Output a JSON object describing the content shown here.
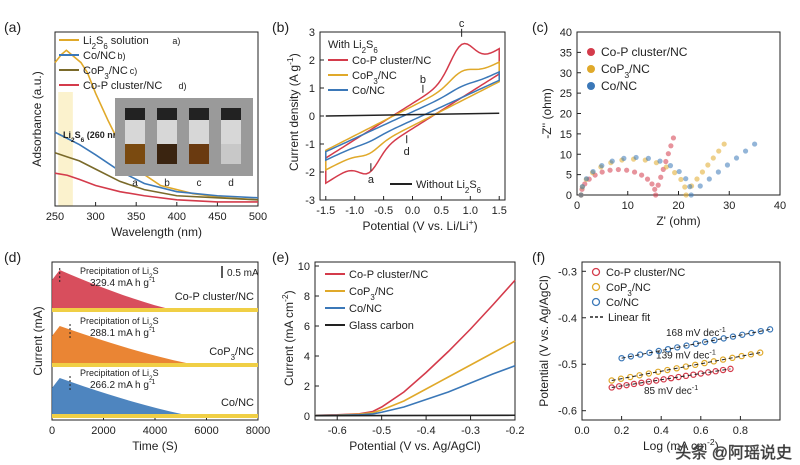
{
  "colors": {
    "red": "#d43b4b",
    "gold": "#e0a92a",
    "blue": "#3b78b8",
    "black": "#222222",
    "yellow": "#f0cf45"
  },
  "watermark": "头条 @阿瑶说史",
  "chart_data": [
    {
      "panel": "(a)",
      "type": "line",
      "xlabel": "Wavelength (nm)",
      "ylabel": "Adsorbance (a.u.)",
      "xlim": [
        250,
        500
      ],
      "xticks": [
        250,
        300,
        350,
        400,
        450,
        500
      ],
      "annotation": "Li2S6 (260 nm)",
      "vial_labels": [
        "a",
        "b",
        "c",
        "d"
      ],
      "series": [
        {
          "name": "Li2S6 solution",
          "tag": "a)",
          "color": "#e0a92a",
          "x": [
            250,
            258,
            264,
            270,
            276,
            282,
            290,
            300,
            315,
            330,
            350,
            380,
            420,
            460,
            500
          ],
          "y": [
            0.7,
            0.74,
            0.76,
            0.74,
            0.72,
            0.7,
            0.65,
            0.55,
            0.42,
            0.3,
            0.18,
            0.1,
            0.06,
            0.04,
            0.03
          ]
        },
        {
          "name": "Co/NC",
          "tag": "b)",
          "color": "#3b78b8",
          "x": [
            250,
            265,
            280,
            300,
            330,
            360,
            400,
            450,
            500
          ],
          "y": [
            0.36,
            0.33,
            0.3,
            0.25,
            0.17,
            0.11,
            0.07,
            0.05,
            0.04
          ]
        },
        {
          "name": "CoP3/NC",
          "tag": "c)",
          "color": "#7a6a2a",
          "x": [
            250,
            265,
            280,
            300,
            330,
            360,
            400,
            450,
            500
          ],
          "y": [
            0.26,
            0.24,
            0.22,
            0.18,
            0.12,
            0.08,
            0.05,
            0.04,
            0.03
          ]
        },
        {
          "name": "Co-P cluster/NC",
          "tag": "d)",
          "color": "#d43b4b",
          "x": [
            250,
            265,
            280,
            300,
            330,
            360,
            400,
            450,
            500
          ],
          "y": [
            0.16,
            0.15,
            0.13,
            0.1,
            0.07,
            0.05,
            0.03,
            0.02,
            0.02
          ]
        }
      ]
    },
    {
      "panel": "(b)",
      "type": "line",
      "title": "With Li2S6",
      "xlabel": "Potential (V vs. Li/Li+)",
      "ylabel": "Current density (A g-1)",
      "xlim": [
        -1.6,
        1.6
      ],
      "ylim": [
        -3,
        3
      ],
      "xticks": [
        -1.5,
        -1.0,
        -0.5,
        0.0,
        0.5,
        1.0,
        1.5
      ],
      "yticks": [
        -3,
        -2,
        -1,
        0,
        1,
        2,
        3
      ],
      "peak_labels": [
        "a",
        "b",
        "c",
        "d"
      ],
      "legend_extra": "Without Li2S6",
      "series": [
        {
          "name": "Co-P cluster/NC",
          "color": "#d43b4b"
        },
        {
          "name": "CoP3/NC",
          "color": "#e0a92a"
        },
        {
          "name": "Co/NC",
          "color": "#3b78b8"
        },
        {
          "name": "Without Li2S6",
          "color": "#222222"
        }
      ]
    },
    {
      "panel": "(c)",
      "type": "scatter",
      "xlabel": "Z' (ohm)",
      "ylabel": "-Z'' (ohm)",
      "xlim": [
        0,
        40
      ],
      "ylim": [
        0,
        40
      ],
      "xticks": [
        0,
        10,
        20,
        30,
        40
      ],
      "yticks": [
        0,
        5,
        10,
        15,
        20,
        25,
        30,
        35,
        40
      ],
      "series": [
        {
          "name": "Co-P cluster/NC",
          "color": "#d43b4b",
          "rct": 15.5,
          "tail_end": [
            19,
            14
          ]
        },
        {
          "name": "CoP3/NC",
          "color": "#e0a92a",
          "rct": 21.5,
          "tail_end": [
            29,
            12.5
          ]
        },
        {
          "name": "Co/NC",
          "color": "#3b78b8",
          "rct": 22.5,
          "tail_end": [
            35,
            12.5
          ]
        }
      ]
    },
    {
      "panel": "(d)",
      "type": "area",
      "xlabel": "Time (S)",
      "ylabel": "Current (mA)",
      "xlim": [
        0,
        8000
      ],
      "xticks": [
        0,
        2000,
        4000,
        6000,
        8000
      ],
      "scale_bar": "0.5 mA",
      "traces": [
        {
          "name": "Co-P cluster/NC",
          "color": "#d43b4b",
          "precipitation_label": "Precipitation of Li2S",
          "capacity": "329.4 mA h g-1"
        },
        {
          "name": "CoP3/NC",
          "color": "#e8781e",
          "precipitation_label": "Precipitation of Li2S",
          "capacity": "288.1 mA h g-1"
        },
        {
          "name": "Co/NC",
          "color": "#3b78b8",
          "precipitation_label": "Precipitation of Li2S",
          "capacity": "266.2 mA h g-1"
        }
      ]
    },
    {
      "panel": "(e)",
      "type": "line",
      "xlabel": "Potential (V vs. Ag/AgCl)",
      "ylabel": "Current (mA cm-2)",
      "xlim": [
        -0.65,
        -0.2
      ],
      "ylim": [
        0,
        10
      ],
      "xticks": [
        -0.6,
        -0.5,
        -0.4,
        -0.3,
        -0.2
      ],
      "yticks": [
        0,
        2,
        4,
        6,
        8,
        10
      ],
      "series": [
        {
          "name": "Co-P cluster/NC",
          "color": "#d43b4b",
          "x": [
            -0.65,
            -0.6,
            -0.55,
            -0.52,
            -0.5,
            -0.45,
            -0.4,
            -0.35,
            -0.3,
            -0.25,
            -0.2
          ],
          "y": [
            0.05,
            0.08,
            0.15,
            0.3,
            0.6,
            1.6,
            2.9,
            4.3,
            5.8,
            7.4,
            9.05
          ]
        },
        {
          "name": "CoP3/NC",
          "color": "#e0a92a",
          "x": [
            -0.65,
            -0.6,
            -0.55,
            -0.52,
            -0.5,
            -0.45,
            -0.4,
            -0.35,
            -0.3,
            -0.25,
            -0.2
          ],
          "y": [
            0.04,
            0.06,
            0.12,
            0.22,
            0.4,
            1.0,
            1.8,
            2.6,
            3.4,
            4.2,
            5.0
          ]
        },
        {
          "name": "Co/NC",
          "color": "#3b78b8",
          "x": [
            -0.65,
            -0.6,
            -0.55,
            -0.52,
            -0.5,
            -0.45,
            -0.4,
            -0.35,
            -0.3,
            -0.25,
            -0.2
          ],
          "y": [
            0.03,
            0.05,
            0.08,
            0.14,
            0.25,
            0.6,
            1.1,
            1.6,
            2.2,
            2.8,
            3.35
          ]
        },
        {
          "name": "Glass carbon",
          "color": "#222222",
          "x": [
            -0.65,
            -0.2
          ],
          "y": [
            0.02,
            0.05
          ]
        }
      ]
    },
    {
      "panel": "(f)",
      "type": "scatter",
      "xlabel": "Log (mA cm-2)",
      "ylabel": "Potential (V vs. Ag/AgCl)",
      "xlim": [
        0,
        1.0
      ],
      "ylim": [
        -0.62,
        -0.28
      ],
      "xticks": [
        0.0,
        0.2,
        0.4,
        0.6,
        0.8
      ],
      "yticks": [
        -0.3,
        -0.4,
        -0.5,
        -0.6
      ],
      "legend_extra": "Linear fit",
      "series": [
        {
          "name": "Co-P cluster/NC",
          "color": "#d43b4b",
          "tafel": "85 mV dec-1",
          "x0": 0.15,
          "x1": 0.75,
          "y0": -0.55,
          "y1": -0.51
        },
        {
          "name": "CoP3/NC",
          "color": "#e0a92a",
          "tafel": "139 mV dec-1",
          "x0": 0.15,
          "x1": 0.9,
          "y0": -0.535,
          "y1": -0.475
        },
        {
          "name": "Co/NC",
          "color": "#3b78b8",
          "tafel": "168 mV dec-1",
          "x0": 0.2,
          "x1": 0.95,
          "y0": -0.487,
          "y1": -0.425
        }
      ]
    }
  ]
}
